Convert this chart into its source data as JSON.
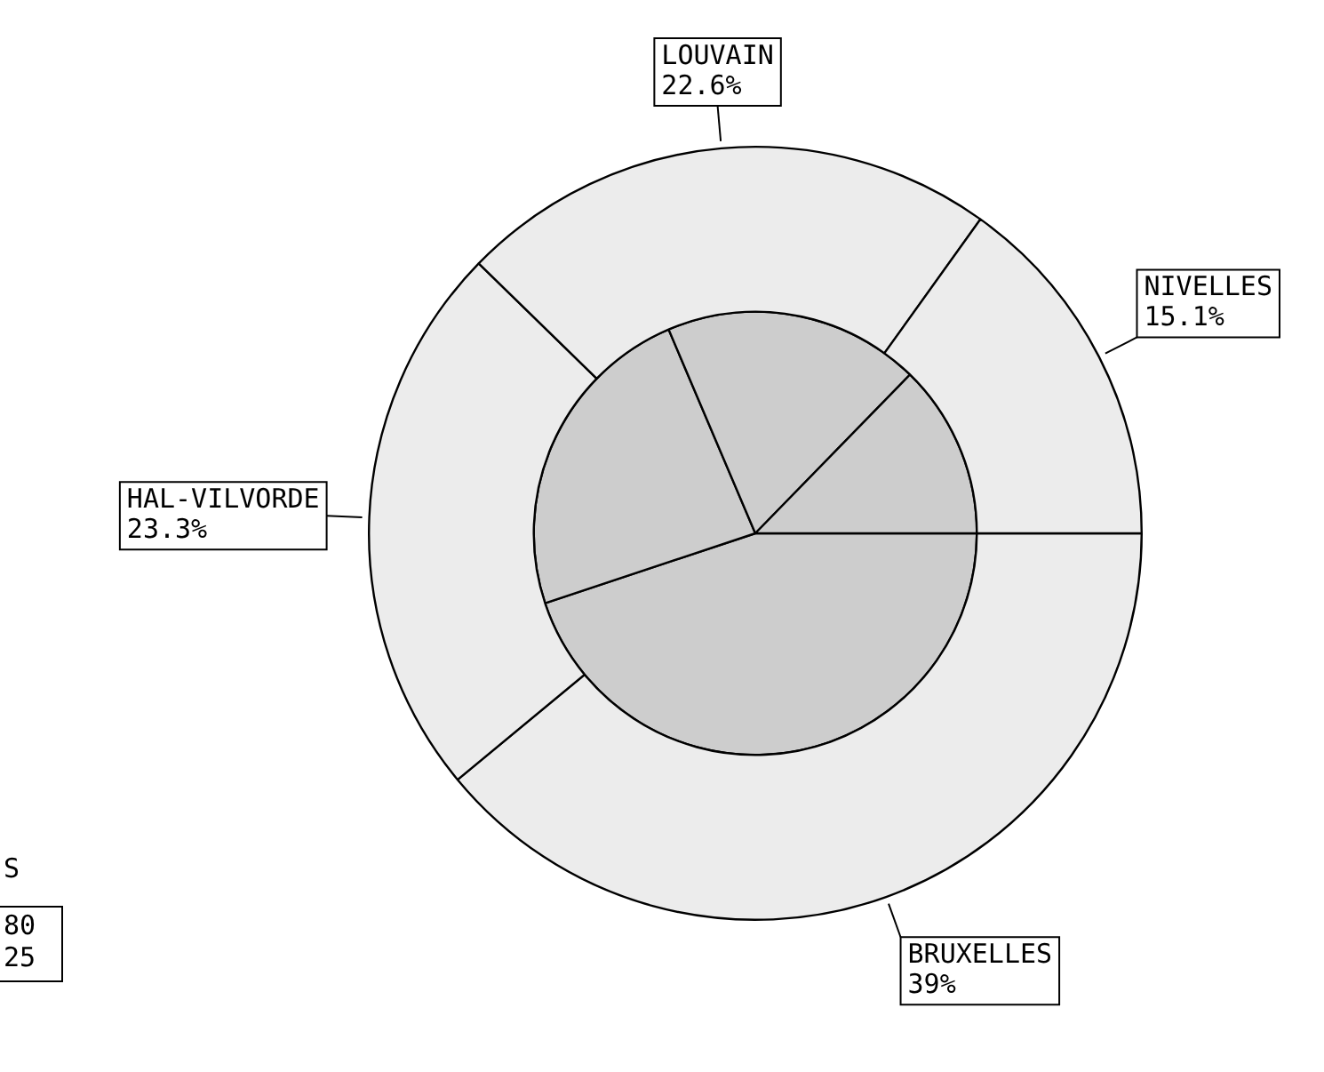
{
  "chart_data": {
    "type": "pie",
    "categories": [
      "BRUXELLES",
      "HAL-VILVORDE",
      "LOUVAIN",
      "NIVELLES"
    ],
    "series": [
      {
        "color": "#ececec",
        "values": [
          39,
          23.3,
          22.6,
          15.1
        ],
        "value_labels": [
          "39%",
          "23.3%",
          "22.6%",
          "15.1%"
        ]
      },
      {
        "color": "#cdcdcd",
        "values": [
          44.9,
          23.7,
          18.7,
          12.7
        ]
      }
    ],
    "annotations": [
      "S",
      "80",
      "25"
    ]
  }
}
